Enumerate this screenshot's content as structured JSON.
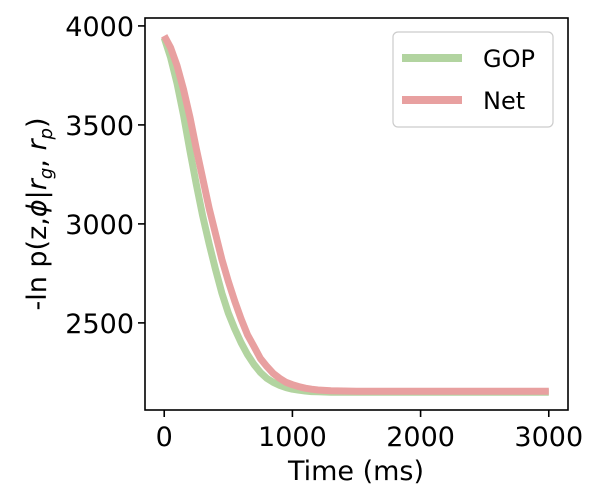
{
  "chart_data": {
    "type": "line",
    "xlabel": "Time (ms)",
    "ylabel_parts": {
      "pre": "-ln p(z,",
      "phi": "ϕ",
      "bar": "|",
      "r1": "r",
      "sub1": "g",
      "sep": ", ",
      "r2": "r",
      "sub2": "p",
      "post": ")"
    },
    "xlim": [
      -150,
      3150
    ],
    "ylim": [
      2060,
      4040
    ],
    "xticks": [
      0,
      1000,
      2000,
      3000
    ],
    "yticks": [
      2500,
      3000,
      3500,
      4000
    ],
    "grid": false,
    "legend_position": "top-right",
    "series": [
      {
        "name": "GOP",
        "color": "#b2d4a0",
        "x": [
          0,
          50,
          100,
          150,
          200,
          250,
          300,
          350,
          400,
          450,
          500,
          550,
          600,
          650,
          700,
          750,
          800,
          850,
          900,
          950,
          1000,
          1050,
          1100,
          1150,
          1200,
          1250,
          1300,
          1400,
          1500,
          1600,
          1800,
          2000,
          2200,
          2400,
          2600,
          2800,
          3000
        ],
        "y": [
          3940,
          3840,
          3710,
          3550,
          3370,
          3200,
          3040,
          2900,
          2770,
          2650,
          2550,
          2470,
          2400,
          2340,
          2290,
          2250,
          2220,
          2200,
          2185,
          2173,
          2165,
          2160,
          2156,
          2153,
          2152,
          2151,
          2150,
          2150,
          2150,
          2150,
          2150,
          2150,
          2150,
          2150,
          2150,
          2150,
          2150
        ]
      },
      {
        "name": "Net",
        "color": "#e8a0a0",
        "x": [
          0,
          50,
          100,
          150,
          200,
          250,
          300,
          350,
          400,
          450,
          500,
          550,
          600,
          650,
          700,
          750,
          800,
          850,
          900,
          950,
          1000,
          1050,
          1100,
          1150,
          1200,
          1250,
          1300,
          1400,
          1500,
          1600,
          1800,
          2000,
          2200,
          2400,
          2600,
          2800,
          3000
        ],
        "y": [
          3950,
          3890,
          3800,
          3680,
          3540,
          3380,
          3230,
          3080,
          2950,
          2820,
          2710,
          2610,
          2520,
          2440,
          2380,
          2320,
          2280,
          2245,
          2220,
          2200,
          2188,
          2178,
          2170,
          2165,
          2161,
          2159,
          2157,
          2156,
          2155,
          2155,
          2155,
          2155,
          2155,
          2155,
          2155,
          2155,
          2155
        ]
      }
    ]
  }
}
